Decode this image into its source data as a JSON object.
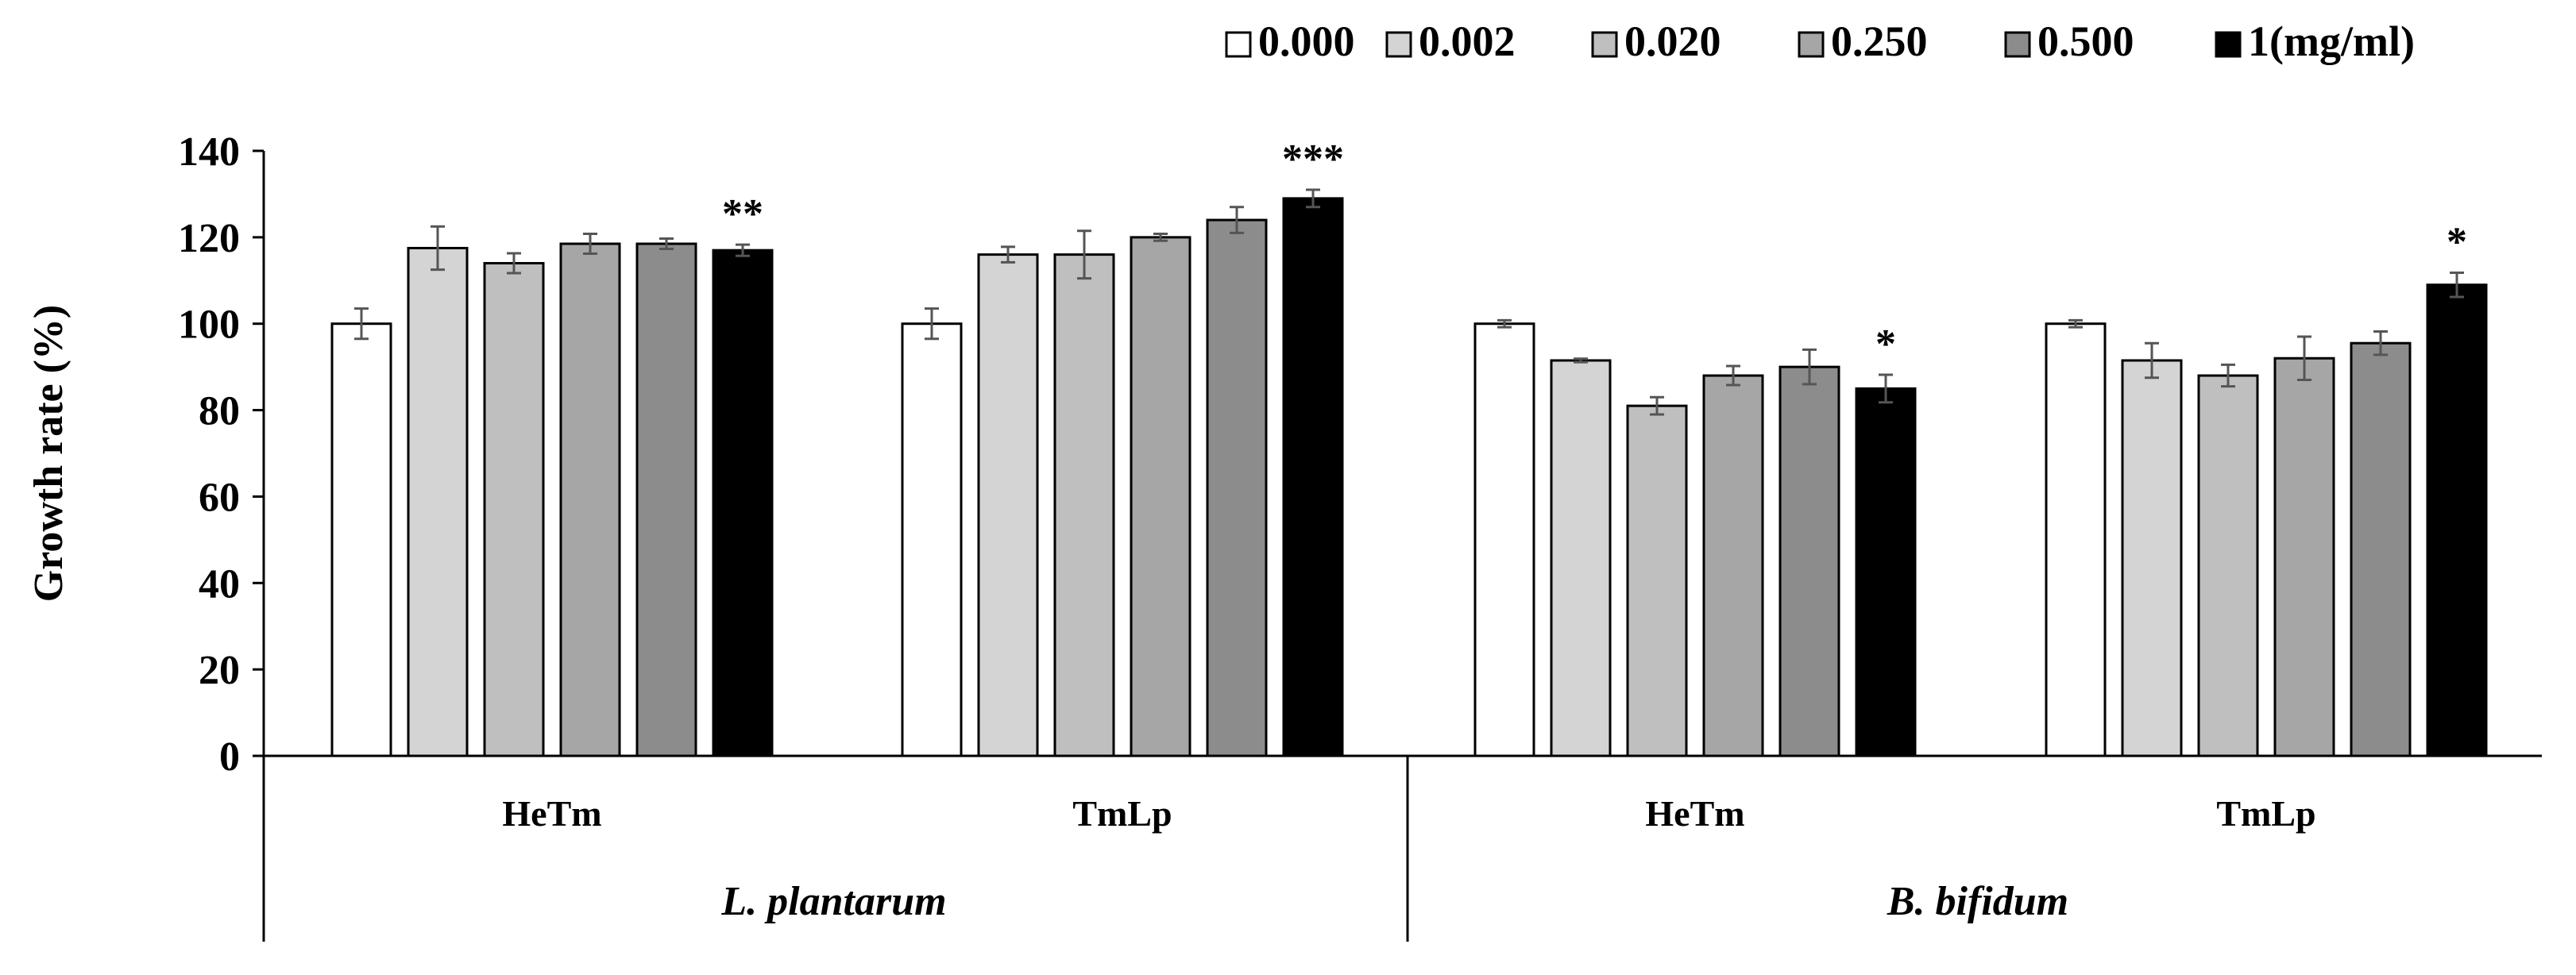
{
  "chart_data": {
    "type": "bar",
    "ylabel": "Growth rate (%)",
    "ylim": [
      0,
      140
    ],
    "yticks": [
      "0",
      "20",
      "40",
      "60",
      "80",
      "100",
      "120",
      "140"
    ],
    "grid": false,
    "legend_position": "top-right",
    "groups": [
      {
        "label": "L. plantarum",
        "categories": [
          "HeTm",
          "TmLp"
        ]
      },
      {
        "label": "B. bifidum",
        "categories": [
          "HeTm",
          "TmLp"
        ]
      }
    ],
    "categories": [
      "HeTm",
      "TmLp",
      "HeTm",
      "TmLp"
    ],
    "series": [
      {
        "name": "0.000",
        "color": "#ffffff",
        "values": [
          100,
          100,
          100,
          100
        ],
        "errors": [
          3.5,
          3.5,
          0.8,
          0.8
        ]
      },
      {
        "name": "0.002",
        "color": "#d4d4d4",
        "values": [
          117.5,
          116,
          91.5,
          91.5
        ],
        "errors": [
          5,
          1.8,
          0.4,
          4
        ]
      },
      {
        "name": "0.020",
        "color": "#bfbfbf",
        "values": [
          114,
          116,
          81,
          88
        ],
        "errors": [
          2.3,
          5.5,
          2,
          2.5
        ]
      },
      {
        "name": "0.250",
        "color": "#a6a6a6",
        "values": [
          118.5,
          120,
          88,
          92
        ],
        "errors": [
          2.3,
          0.8,
          2.2,
          5
        ]
      },
      {
        "name": "0.500",
        "color": "#8c8c8c",
        "values": [
          118.5,
          124,
          90,
          95.5
        ],
        "errors": [
          1.2,
          3,
          4,
          2.7
        ]
      },
      {
        "name": "1(mg/ml)",
        "color": "#000000",
        "values": [
          117,
          129,
          85,
          109
        ],
        "errors": [
          1.3,
          2,
          3.2,
          2.8
        ]
      }
    ],
    "annotations": [
      {
        "category_index": 0,
        "series_index": 5,
        "text": "**"
      },
      {
        "category_index": 1,
        "series_index": 5,
        "text": "***"
      },
      {
        "category_index": 2,
        "series_index": 5,
        "text": "*"
      },
      {
        "category_index": 3,
        "series_index": 5,
        "text": "*"
      }
    ]
  }
}
